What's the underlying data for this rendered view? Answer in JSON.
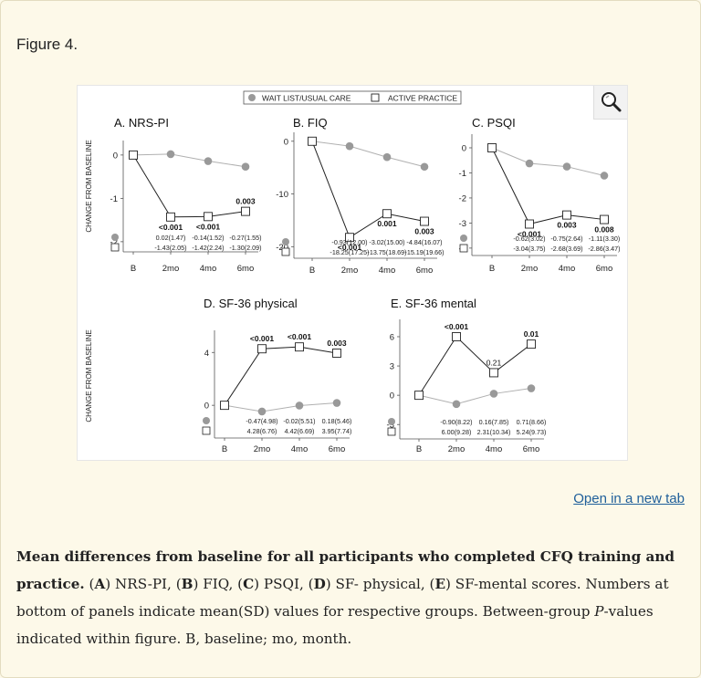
{
  "figure_label": "Figure 4.",
  "open_link": "Open in a new tab",
  "caption": {
    "title": "Mean differences from baseline for all participants who completed CFQ training and practice",
    "title_end": ".",
    "text_segments": [
      {
        "t": " (",
        "b": false
      },
      {
        "t": "A",
        "b": true
      },
      {
        "t": ") NRS-PI, (",
        "b": false
      },
      {
        "t": "B",
        "b": true
      },
      {
        "t": ") FIQ, (",
        "b": false
      },
      {
        "t": "C",
        "b": true
      },
      {
        "t": ") PSQI, (",
        "b": false
      },
      {
        "t": "D",
        "b": true
      },
      {
        "t": ") SF- physical, (",
        "b": false
      },
      {
        "t": "E",
        "b": true
      },
      {
        "t": ") SF-mental scores. Numbers at bottom of panels indicate mean(SD) values for respective groups. Between-group ",
        "b": false
      },
      {
        "t": "P",
        "b": false,
        "i": true
      },
      {
        "t": "-values indicated within figure. B, baseline; mo, month.",
        "b": false
      }
    ]
  },
  "legend": {
    "wait_list": "WAIT LIST/USUAL CARE",
    "active": "ACTIVE PRACTICE"
  },
  "colors": {
    "wait_list_marker": "#999999",
    "wait_list_line": "#b0b0b0",
    "active_line": "#222222"
  },
  "chart_data": [
    {
      "type": "line",
      "title": "A. NRS-PI",
      "ylabel": "CHANGE FROM BASELINE",
      "categories": [
        "B",
        "2mo",
        "4mo",
        "6mo"
      ],
      "ylim": [
        -2.15,
        0.25
      ],
      "yticks": [
        0,
        -1,
        -2
      ],
      "series": [
        {
          "name": "WAIT LIST/USUAL CARE",
          "values": [
            0,
            0.02,
            -0.14,
            -0.27
          ]
        },
        {
          "name": "ACTIVE PRACTICE",
          "values": [
            0,
            -1.43,
            -1.42,
            -1.3
          ]
        }
      ],
      "pvalues": [
        "<0.001",
        "<0.001",
        "0.003"
      ],
      "pvalue_positions": [
        "below",
        "below",
        "above"
      ],
      "stats": {
        "wait": [
          "0.02(1.47)",
          "-0.14(1.52)",
          "-0.27(1.55)"
        ],
        "active": [
          "-1.43(2.05)",
          "-1.42(2.24)",
          "-1.30(2.09)"
        ]
      }
    },
    {
      "type": "line",
      "title": "B. FIQ",
      "ylabel": "",
      "categories": [
        "B",
        "2mo",
        "4mo",
        "6mo"
      ],
      "ylim": [
        -21.5,
        1
      ],
      "yticks": [
        0,
        -10,
        -20
      ],
      "series": [
        {
          "name": "WAIT LIST/USUAL CARE",
          "values": [
            0,
            -0.93,
            -3.02,
            -4.84
          ]
        },
        {
          "name": "ACTIVE PRACTICE",
          "values": [
            0,
            -18.25,
            -13.75,
            -15.19
          ]
        }
      ],
      "pvalues": [
        "<0.001",
        "0.001",
        "0.003"
      ],
      "pvalue_positions": [
        "below",
        "below",
        "below"
      ],
      "stats": {
        "wait": [
          "-0.93(12.00)",
          "-3.02(15.00)",
          "-4.84(16.07)"
        ],
        "active": [
          "-18.25(17.25)",
          "-13.75(18.69)",
          "-15.19(19.66)"
        ]
      }
    },
    {
      "type": "line",
      "title": "C. PSQI",
      "ylabel": "",
      "categories": [
        "B",
        "2mo",
        "4mo",
        "6mo"
      ],
      "ylim": [
        -4.15,
        0.4
      ],
      "yticks": [
        0,
        -1,
        -2,
        -3,
        -4
      ],
      "series": [
        {
          "name": "WAIT LIST/USUAL CARE",
          "values": [
            0,
            -0.62,
            -0.75,
            -1.11
          ]
        },
        {
          "name": "ACTIVE PRACTICE",
          "values": [
            0,
            -3.04,
            -2.68,
            -2.86
          ]
        }
      ],
      "pvalues": [
        "<0.001",
        "0.003",
        "0.008"
      ],
      "pvalue_positions": [
        "below",
        "below",
        "below"
      ],
      "stats": {
        "wait": [
          "-0.62(3.02)",
          "-0.75(2.64)",
          "-1.11(3.30)"
        ],
        "active": [
          "-3.04(3.75)",
          "-2.68(3.69)",
          "-2.86(3.47)"
        ]
      }
    },
    {
      "type": "line",
      "title": "D. SF-36 physical",
      "ylabel": "CHANGE FROM BASELINE",
      "categories": [
        "B",
        "2mo",
        "4mo",
        "6mo"
      ],
      "ylim": [
        -2.2,
        5.4
      ],
      "yticks": [
        4,
        0
      ],
      "series": [
        {
          "name": "WAIT LIST/USUAL CARE",
          "values": [
            0,
            -0.47,
            -0.02,
            0.18
          ]
        },
        {
          "name": "ACTIVE PRACTICE",
          "values": [
            0,
            4.28,
            4.42,
            3.95
          ]
        }
      ],
      "pvalues": [
        "<0.001",
        "<0.001",
        "0.003"
      ],
      "pvalue_positions": [
        "above",
        "above",
        "above"
      ],
      "stats": {
        "wait": [
          "-0.47(4.98)",
          "-0.02(5.51)",
          "0.18(5.46)"
        ],
        "active": [
          "4.28(6.76)",
          "4.42(6.69)",
          "3.95(7.74)"
        ]
      }
    },
    {
      "type": "line",
      "title": "E. SF-36 mental",
      "ylabel": "",
      "categories": [
        "B",
        "2mo",
        "4mo",
        "6mo"
      ],
      "ylim": [
        -4.1,
        7.4
      ],
      "yticks": [
        6,
        3,
        0,
        -3
      ],
      "series": [
        {
          "name": "WAIT LIST/USUAL CARE",
          "values": [
            0,
            -0.9,
            0.16,
            0.71
          ]
        },
        {
          "name": "ACTIVE PRACTICE",
          "values": [
            0,
            6.0,
            2.31,
            5.24
          ]
        }
      ],
      "pvalues": [
        "<0.001",
        "0.21",
        "0.01"
      ],
      "pvalue_positions": [
        "above",
        "above",
        "above"
      ],
      "stats": {
        "wait": [
          "-0.90(8.22)",
          "0.16(7.85)",
          "0.71(8.66)"
        ],
        "active": [
          "6.00(9.28)",
          "2.31(10.34)",
          "5.24(9.73)"
        ]
      }
    }
  ]
}
